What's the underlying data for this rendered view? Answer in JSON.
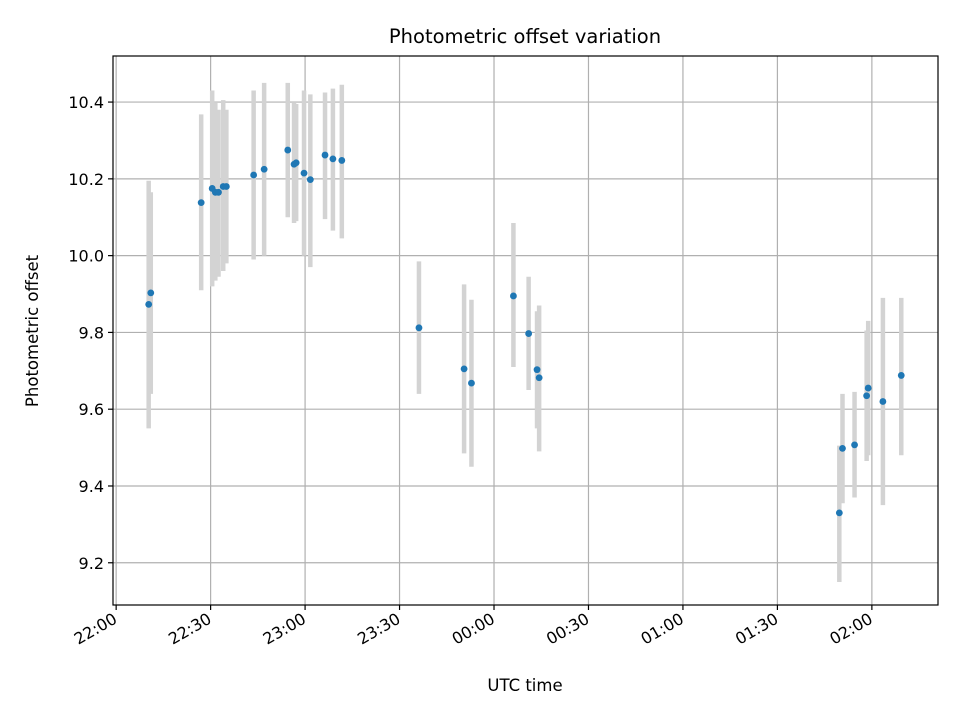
{
  "chart_data": {
    "type": "scatter",
    "title": "Photometric offset variation",
    "xlabel": "UTC time",
    "ylabel": "Photometric offset",
    "x_ticks": [
      "22:00",
      "22:30",
      "23:00",
      "23:30",
      "00:00",
      "00:30",
      "01:00",
      "01:30",
      "02:00"
    ],
    "y_ticks": [
      "9.2",
      "9.4",
      "9.6",
      "9.8",
      "10.0",
      "10.2",
      "10.4"
    ],
    "xlim": [
      "21:59",
      "02:21"
    ],
    "ylim": [
      9.09,
      10.52
    ],
    "grid": true,
    "colors": {
      "marker": "#1f77b4",
      "errorbar": "#d3d3d3",
      "grid": "#b0b0b0"
    },
    "points": [
      {
        "x": "22:10:20",
        "y": 9.873,
        "ylow": 9.55,
        "yhigh": 10.195
      },
      {
        "x": "22:11:00",
        "y": 9.903,
        "ylow": 9.64,
        "yhigh": 10.165
      },
      {
        "x": "22:27:00",
        "y": 10.138,
        "ylow": 9.91,
        "yhigh": 10.368
      },
      {
        "x": "22:30:30",
        "y": 10.175,
        "ylow": 9.92,
        "yhigh": 10.43
      },
      {
        "x": "22:31:30",
        "y": 10.165,
        "ylow": 9.935,
        "yhigh": 10.4
      },
      {
        "x": "22:32:30",
        "y": 10.165,
        "ylow": 9.945,
        "yhigh": 10.38
      },
      {
        "x": "22:34:00",
        "y": 10.18,
        "ylow": 9.96,
        "yhigh": 10.405
      },
      {
        "x": "22:35:00",
        "y": 10.18,
        "ylow": 9.98,
        "yhigh": 10.38
      },
      {
        "x": "22:43:40",
        "y": 10.21,
        "ylow": 9.99,
        "yhigh": 10.43
      },
      {
        "x": "22:47:00",
        "y": 10.225,
        "ylow": 10.0,
        "yhigh": 10.45
      },
      {
        "x": "22:54:30",
        "y": 10.275,
        "ylow": 10.1,
        "yhigh": 10.45
      },
      {
        "x": "22:56:30",
        "y": 10.238,
        "ylow": 10.085,
        "yhigh": 10.4
      },
      {
        "x": "22:57:10",
        "y": 10.242,
        "ylow": 10.09,
        "yhigh": 10.395
      },
      {
        "x": "22:59:40",
        "y": 10.215,
        "ylow": 10.0,
        "yhigh": 10.43
      },
      {
        "x": "23:01:40",
        "y": 10.198,
        "ylow": 9.97,
        "yhigh": 10.42
      },
      {
        "x": "23:06:20",
        "y": 10.262,
        "ylow": 10.095,
        "yhigh": 10.425
      },
      {
        "x": "23:08:50",
        "y": 10.252,
        "ylow": 10.065,
        "yhigh": 10.435
      },
      {
        "x": "23:11:40",
        "y": 10.248,
        "ylow": 10.045,
        "yhigh": 10.445
      },
      {
        "x": "23:36:10",
        "y": 9.812,
        "ylow": 9.64,
        "yhigh": 9.985
      },
      {
        "x": "23:50:30",
        "y": 9.705,
        "ylow": 9.485,
        "yhigh": 9.925
      },
      {
        "x": "23:52:50",
        "y": 9.668,
        "ylow": 9.45,
        "yhigh": 9.885
      },
      {
        "x": "00:06:10",
        "y": 9.895,
        "ylow": 9.71,
        "yhigh": 10.085
      },
      {
        "x": "00:11:00",
        "y": 9.797,
        "ylow": 9.65,
        "yhigh": 9.945
      },
      {
        "x": "00:13:40",
        "y": 9.703,
        "ylow": 9.55,
        "yhigh": 9.855
      },
      {
        "x": "00:14:20",
        "y": 9.682,
        "ylow": 9.49,
        "yhigh": 9.87
      },
      {
        "x": "01:49:40",
        "y": 9.33,
        "ylow": 9.15,
        "yhigh": 9.505
      },
      {
        "x": "01:50:40",
        "y": 9.498,
        "ylow": 9.355,
        "yhigh": 9.64
      },
      {
        "x": "01:54:30",
        "y": 9.507,
        "ylow": 9.37,
        "yhigh": 9.645
      },
      {
        "x": "01:58:20",
        "y": 9.635,
        "ylow": 9.465,
        "yhigh": 9.805
      },
      {
        "x": "01:58:50",
        "y": 9.655,
        "ylow": 9.48,
        "yhigh": 9.83
      },
      {
        "x": "02:03:30",
        "y": 9.62,
        "ylow": 9.35,
        "yhigh": 9.89
      },
      {
        "x": "02:09:20",
        "y": 9.688,
        "ylow": 9.48,
        "yhigh": 9.89
      }
    ]
  }
}
